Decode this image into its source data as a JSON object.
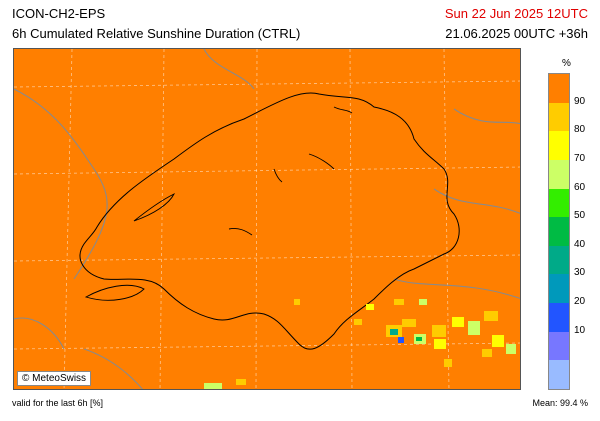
{
  "header": {
    "model": "ICON-CH2-EPS",
    "product": "6h Cumulated Relative Sunshine Duration (CTRL)",
    "valid_date": "Sun 22 Jun 2025 12UTC",
    "run_info": "21.06.2025 00UTC +36h"
  },
  "map": {
    "credit": "© MeteoSwiss",
    "background_color": "#ff7f00"
  },
  "legend": {
    "unit": "%",
    "classes": [
      {
        "label": "",
        "color": "#ff7f00"
      },
      {
        "label": "90",
        "color": "#ffcc00"
      },
      {
        "label": "80",
        "color": "#ffff00"
      },
      {
        "label": "70",
        "color": "#ccff66"
      },
      {
        "label": "60",
        "color": "#33ee00"
      },
      {
        "label": "50",
        "color": "#00bb44"
      },
      {
        "label": "40",
        "color": "#00aa88"
      },
      {
        "label": "30",
        "color": "#0099bb"
      },
      {
        "label": "20",
        "color": "#2255ff"
      },
      {
        "label": "10",
        "color": "#7777ff"
      },
      {
        "label": "",
        "color": "#99bbff"
      }
    ]
  },
  "footer": {
    "validity": "valid for the last 6h [%]",
    "mean": "Mean:   99.4 %"
  }
}
